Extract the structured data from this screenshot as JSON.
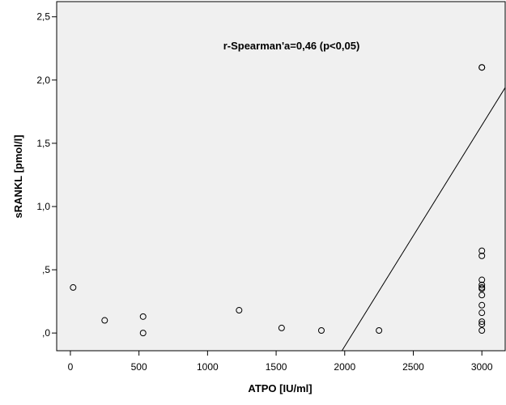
{
  "chart_data": {
    "type": "scatter",
    "title": "",
    "xlabel": "ATPO [IU/ml]",
    "ylabel": "sRANKL [pmol/l]",
    "annotation": "r-Spearman'a=0,46 (p<0,05)",
    "xlim": [
      -100,
      3170
    ],
    "ylim": [
      -0.14,
      2.62
    ],
    "x_ticks": [
      0,
      500,
      1000,
      1500,
      2000,
      2500,
      3000
    ],
    "x_tick_labels": [
      "0",
      "500",
      "1000",
      "1500",
      "2000",
      "2500",
      "3000"
    ],
    "y_ticks": [
      0,
      0.5,
      1.0,
      1.5,
      2.0,
      2.5
    ],
    "y_tick_labels": [
      ",0",
      ",5",
      "1,0",
      "1,5",
      "2,0",
      "2,5"
    ],
    "plot_background": "#f0f0f0",
    "grid": false,
    "points": [
      {
        "x": 20,
        "y": 0.36
      },
      {
        "x": 250,
        "y": 0.1
      },
      {
        "x": 530,
        "y": 0.13
      },
      {
        "x": 530,
        "y": 0.0
      },
      {
        "x": 1230,
        "y": 0.18
      },
      {
        "x": 1540,
        "y": 0.04
      },
      {
        "x": 1830,
        "y": 0.02
      },
      {
        "x": 2250,
        "y": 0.02
      },
      {
        "x": 3000,
        "y": 2.1
      },
      {
        "x": 3000,
        "y": 2.1
      },
      {
        "x": 3000,
        "y": 0.65
      },
      {
        "x": 3000,
        "y": 0.61
      },
      {
        "x": 3000,
        "y": 0.42
      },
      {
        "x": 3000,
        "y": 0.38
      },
      {
        "x": 3000,
        "y": 0.36
      },
      {
        "x": 3000,
        "y": 0.35
      },
      {
        "x": 3000,
        "y": 0.3
      },
      {
        "x": 3000,
        "y": 0.22
      },
      {
        "x": 3000,
        "y": 0.16
      },
      {
        "x": 3000,
        "y": 0.09
      },
      {
        "x": 3000,
        "y": 0.07
      },
      {
        "x": 3000,
        "y": 0.02
      }
    ],
    "fit_line": {
      "x": [
        1980,
        3170
      ],
      "y": [
        -0.14,
        1.94
      ]
    }
  }
}
